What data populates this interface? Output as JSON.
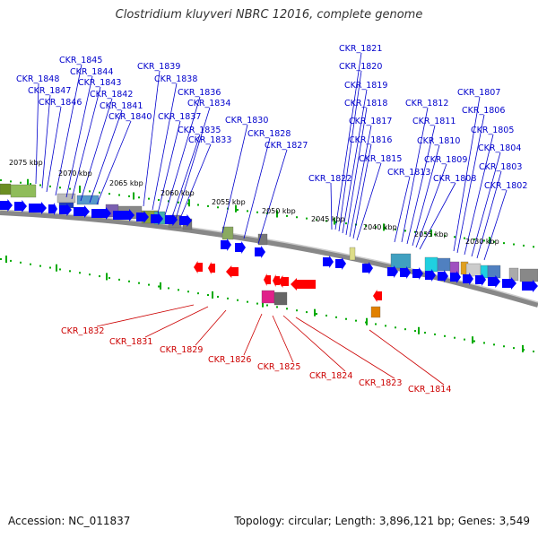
{
  "title": "Clostridium kluyveri NBRC 12016, complete genome",
  "footer": {
    "accession": "Accession: NC_011837",
    "info": "Topology: circular; Length: 3,896,121 bp; Genes: 3,549"
  },
  "kbp_labels": [
    "2075 kbp",
    "2070 kbp",
    "2065 kbp",
    "2060 kbp",
    "2055 kbp",
    "2050 kbp",
    "2045 kbp",
    "2040 kbp",
    "2035 kbp",
    "2030 kbp"
  ],
  "forward_genes": [
    "CKR_1848",
    "CKR_1847",
    "CKR_1846",
    "CKR_1845",
    "CKR_1844",
    "CKR_1843",
    "CKR_1842",
    "CKR_1841",
    "CKR_1840",
    "CKR_1839",
    "CKR_1838",
    "CKR_1837",
    "CKR_1836",
    "CKR_1835",
    "CKR_1834",
    "CKR_1833",
    "CKR_1830",
    "CKR_1828",
    "CKR_1827",
    "CKR_1822",
    "CKR_1821",
    "CKR_1820",
    "CKR_1819",
    "CKR_1818",
    "CKR_1817",
    "CKR_1816",
    "CKR_1815",
    "CKR_1813",
    "CKR_1812",
    "CKR_1811",
    "CKR_1810",
    "CKR_1809",
    "CKR_1808",
    "CKR_1807",
    "CKR_1806",
    "CKR_1805",
    "CKR_1804",
    "CKR_1803",
    "CKR_1802"
  ],
  "reverse_genes": [
    "CKR_1832",
    "CKR_1831",
    "CKR_1829",
    "CKR_1826",
    "CKR_1825",
    "CKR_1824",
    "CKR_1823",
    "CKR_1814"
  ],
  "colors": {
    "forward_label": "#0000cc",
    "reverse_label": "#cc0000",
    "forward_arrow": "#0000ff",
    "reverse_arrow": "#ff0000",
    "backbone": "#888888",
    "tick_major": "#00aa00"
  }
}
